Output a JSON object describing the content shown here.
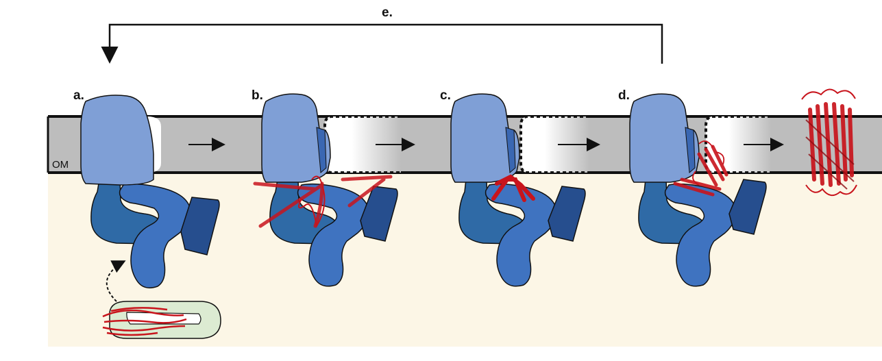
{
  "figure": {
    "panel_labels": {
      "a": "a.",
      "b": "b.",
      "c": "c.",
      "d": "d.",
      "e": "e."
    },
    "membrane_label": "OM",
    "colors": {
      "periplasm": "#fcf6e6",
      "membrane": "#bdbdbd",
      "barrel_domain": "#7f9fd6",
      "potra_1": "#2f6aa6",
      "potra_2": "#3f73c0",
      "potra_3": "#264e8e",
      "substrate": "#c8141c",
      "chaperone": "#dcebd2"
    },
    "icons": [
      "arrow-right-icon",
      "feedback-arrow-icon",
      "dashed-curved-arrow-icon",
      "folded-barrel-icon"
    ]
  }
}
